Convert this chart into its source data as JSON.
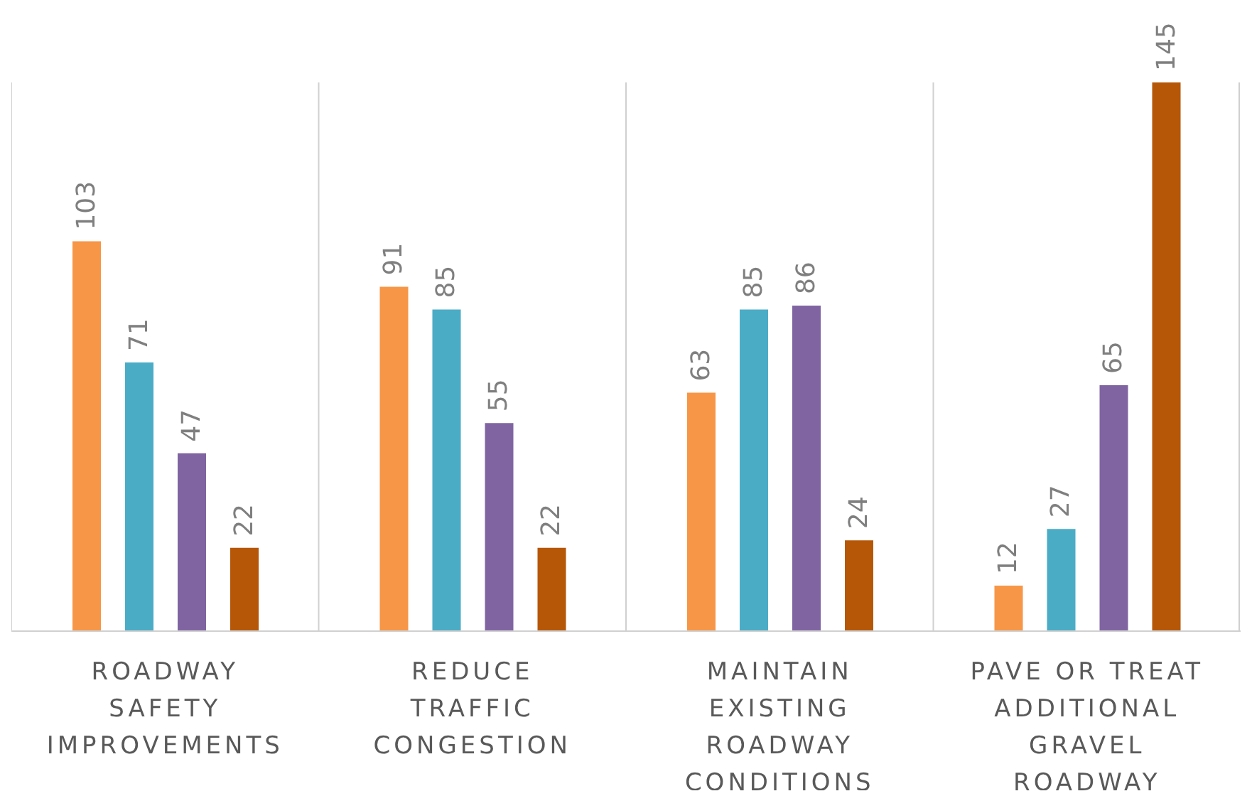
{
  "chart_data": {
    "type": "bar",
    "categories": [
      "ROADWAY SAFETY IMPROVEMENTS",
      "REDUCE TRAFFIC CONGESTION",
      "MAINTAIN EXISTING ROADWAY CONDITIONS",
      "PAVE OR TREAT ADDITIONAL GRAVEL ROADWAY"
    ],
    "series": [
      {
        "color": "#f79646",
        "values": [
          103,
          91,
          63,
          12
        ]
      },
      {
        "color": "#4bacc6",
        "values": [
          71,
          85,
          85,
          27
        ]
      },
      {
        "color": "#8064a2",
        "values": [
          47,
          55,
          86,
          65
        ]
      },
      {
        "color": "#b65708",
        "values": [
          22,
          22,
          24,
          145
        ]
      }
    ],
    "data_labels": true,
    "grid": "x"
  }
}
